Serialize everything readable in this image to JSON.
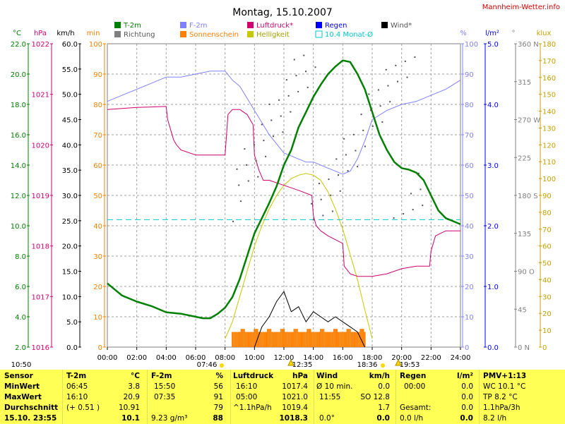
{
  "title": "Montag, 15.10.2007",
  "site": "Mannheim-Wetter.info",
  "legend": [
    {
      "label": "T-2m",
      "color": "#008000"
    },
    {
      "label": "F-2m",
      "color": "#8080ff"
    },
    {
      "label": "Luftdruck*",
      "color": "#d0006f"
    },
    {
      "label": "Regen",
      "color": "#0000ff"
    },
    {
      "label": "Wind*",
      "color": "#000000"
    },
    {
      "label": "Richtung",
      "color": "#808080"
    },
    {
      "label": "Sonnenschein",
      "color": "#ff8000"
    },
    {
      "label": "Helligkeit",
      "color": "#c8c800"
    },
    {
      "label": "10.4 Monat-Ø",
      "color": "#00c8c8"
    }
  ],
  "axis_units": {
    "temp": "°C",
    "hpa": "hPa",
    "kmh": "km/h",
    "min": "min",
    "pct": "%",
    "rain": "l/m²",
    "dir": "°",
    "klux": "klux"
  },
  "chart_data": {
    "type": "line",
    "x_range": [
      "00:00",
      "24:00"
    ],
    "x_ticks": [
      "00:00",
      "02:00",
      "04:00",
      "06:00",
      "08:00",
      "10:00",
      "12:00",
      "14:00",
      "16:00",
      "18:00",
      "20:00",
      "22:00",
      "24:00"
    ],
    "axes": {
      "temp": {
        "range": [
          2.0,
          22.0
        ],
        "ticks": [
          "22.0",
          "20.0",
          "18.0",
          "16.0",
          "14.0",
          "12.0",
          "10.0",
          "8.0",
          "6.0",
          "4.0",
          "2.0"
        ]
      },
      "hpa": {
        "range": [
          1016,
          1022
        ],
        "ticks": [
          "1022",
          "1021",
          "1020",
          "1019",
          "1018",
          "1017",
          "1016"
        ]
      },
      "kmh": {
        "range": [
          0,
          60
        ],
        "ticks": [
          "60.0",
          "55.0",
          "50.0",
          "45.0",
          "40.0",
          "35.0",
          "30.0",
          "25.0",
          "20.0",
          "15.0",
          "10.0",
          "5.0",
          "0.0"
        ]
      },
      "min": {
        "range": [
          0,
          100
        ],
        "ticks": [
          "100",
          "90",
          "80",
          "70",
          "60",
          "50",
          "40",
          "30",
          "20",
          "10",
          "0"
        ]
      },
      "pct": {
        "range": [
          0,
          100
        ],
        "ticks": [
          "100",
          "90",
          "80",
          "70",
          "60",
          "50",
          "40",
          "30",
          "20",
          "10",
          "0"
        ]
      },
      "rain": {
        "range": [
          0,
          5
        ],
        "ticks": [
          "5.0",
          "4.0",
          "3.0",
          "2.0",
          "1.0",
          "0.0"
        ]
      },
      "dir": {
        "range": [
          0,
          360
        ],
        "ticks": [
          "360 N",
          "315",
          "270 W",
          "225",
          "180 S",
          "135",
          "90 O",
          "45",
          "0 N"
        ]
      },
      "klux": {
        "range": [
          0,
          180
        ],
        "ticks": [
          "180",
          "170",
          "160",
          "150",
          "140",
          "130",
          "120",
          "110",
          "100",
          "90",
          "80",
          "70",
          "60",
          "50",
          "40",
          "30",
          "20",
          "10",
          "0"
        ]
      }
    },
    "series": [
      {
        "name": "T-2m",
        "axis": "temp",
        "x": [
          0,
          0.5,
          1,
          2,
          3,
          4,
          5,
          6,
          6.5,
          7,
          7.5,
          8,
          8.5,
          9,
          9.5,
          10,
          10.5,
          11,
          11.5,
          12,
          12.5,
          13,
          13.5,
          14,
          14.5,
          15,
          15.5,
          16,
          16.5,
          17,
          17.5,
          18,
          18.5,
          19,
          19.5,
          20,
          20.5,
          21,
          21.5,
          22,
          22.5,
          23,
          23.5,
          24
        ],
        "y": [
          6.2,
          5.8,
          5.4,
          5.0,
          4.7,
          4.3,
          4.2,
          4.0,
          3.9,
          3.9,
          4.2,
          4.6,
          5.3,
          6.5,
          8.0,
          9.5,
          10.5,
          11.5,
          12.6,
          14.0,
          15.0,
          16.5,
          17.5,
          18.5,
          19.3,
          20.0,
          20.5,
          20.9,
          20.8,
          20.0,
          19.0,
          17.5,
          16.0,
          15.0,
          14.2,
          13.8,
          13.7,
          13.5,
          13.0,
          12.0,
          11.0,
          10.5,
          10.3,
          10.1
        ]
      },
      {
        "name": "F-2m",
        "axis": "pct",
        "x": [
          0,
          1,
          2,
          3,
          4,
          5,
          6,
          7,
          8,
          8.5,
          9,
          9.5,
          10,
          10.5,
          11,
          11.5,
          12,
          12.5,
          13,
          13.5,
          14,
          14.5,
          15,
          15.5,
          16,
          16.5,
          17,
          17.5,
          18,
          19,
          20,
          21,
          22,
          23,
          24
        ],
        "y": [
          81,
          83,
          85,
          87,
          89,
          89,
          90,
          91,
          91,
          88,
          86,
          82,
          78,
          74,
          70,
          67,
          64,
          63,
          62,
          61,
          61,
          60,
          59,
          58,
          57,
          58,
          62,
          68,
          75,
          78,
          80,
          81,
          83,
          85,
          88
        ]
      },
      {
        "name": "Luftdruck*",
        "axis": "hpa",
        "x": [
          0,
          1,
          2,
          3,
          4,
          4.1,
          4.3,
          4.5,
          4.7,
          5,
          6,
          7,
          8,
          8.2,
          8.5,
          9,
          9.5,
          9.9,
          10,
          10.3,
          10.6,
          11,
          12,
          13,
          13.9,
          14.0,
          14.2,
          14.5,
          15,
          16,
          16.1,
          16.5,
          17,
          18,
          19,
          20,
          21,
          21.9,
          22.0,
          22.3,
          23,
          24
        ],
        "y": [
          1020.7,
          1020.72,
          1020.74,
          1020.75,
          1020.76,
          1020.5,
          1020.3,
          1020.1,
          1020.0,
          1019.9,
          1019.8,
          1019.8,
          1019.8,
          1020.6,
          1020.7,
          1020.7,
          1020.6,
          1020.4,
          1019.8,
          1019.5,
          1019.3,
          1019.3,
          1019.2,
          1019.1,
          1019.0,
          1018.6,
          1018.4,
          1018.3,
          1018.2,
          1018.05,
          1017.6,
          1017.45,
          1017.4,
          1017.4,
          1017.45,
          1017.55,
          1017.6,
          1017.6,
          1017.9,
          1018.2,
          1018.3,
          1018.3
        ]
      },
      {
        "name": "Helligkeit",
        "axis": "klux",
        "x": [
          8,
          8.5,
          9,
          9.5,
          10,
          10.5,
          11,
          11.5,
          12,
          12.5,
          13,
          13.5,
          14,
          14.5,
          15,
          15.5,
          16,
          16.5,
          17,
          17.5,
          18
        ],
        "y": [
          5,
          15,
          30,
          45,
          60,
          72,
          82,
          90,
          96,
          100,
          102,
          103,
          102,
          99,
          92,
          82,
          70,
          55,
          40,
          22,
          5
        ]
      },
      {
        "name": "Wind*",
        "axis": "kmh",
        "x": [
          10,
          10.5,
          11,
          11.5,
          12,
          12.5,
          13,
          13.5,
          14,
          14.5,
          15,
          15.5,
          16,
          16.5,
          17,
          17.5
        ],
        "y": [
          0,
          4,
          6,
          9,
          11,
          7,
          8,
          5,
          7,
          6,
          5,
          6,
          5,
          4,
          3,
          0
        ]
      },
      {
        "name": "Sonnenschein",
        "axis": "min",
        "x": [
          8.5,
          17.5
        ],
        "y": [
          5,
          5
        ]
      },
      {
        "name": "10.4 Monat-Ø",
        "axis": "temp",
        "x": [
          0,
          24
        ],
        "y": [
          10.4,
          10.4
        ]
      }
    ]
  },
  "events": {
    "sunrise": "07:46",
    "noon": "12:35",
    "sunset": "18:36",
    "extra_left": "10:50",
    "extra_right": "19:53"
  },
  "table": {
    "sensor": {
      "header": "Sensor",
      "rows": [
        "MinWert",
        "MaxWert",
        "Durchschnitt",
        "15.10. 23:55"
      ]
    },
    "t2m": {
      "header": "T-2m",
      "unit": "°C",
      "rows": [
        [
          "06:45",
          "3.8"
        ],
        [
          "16:10",
          "20.9"
        ],
        [
          "(+ 0.51 )",
          "10.91"
        ],
        [
          "",
          "10.1"
        ]
      ]
    },
    "f2m": {
      "header": "F-2m",
      "unit": "%",
      "rows": [
        [
          "15:50",
          "56"
        ],
        [
          "07:35",
          "91"
        ],
        [
          "",
          "79"
        ],
        [
          "9.23 g/m³",
          "88"
        ]
      ]
    },
    "luftdruck": {
      "header": "Luftdruck",
      "unit": "hPa",
      "rows": [
        [
          "16:10",
          "1017.4"
        ],
        [
          "05:00",
          "1021.0"
        ],
        [
          "^1.1hPa/h",
          "1019.4"
        ],
        [
          "",
          "1018.3"
        ]
      ]
    },
    "wind": {
      "header": "Wind",
      "unit": "km/h",
      "rows": [
        [
          "Ø 10 min.",
          "0.0"
        ],
        [
          "11:55",
          "SO 12.8"
        ],
        [
          "",
          "1.7"
        ],
        [
          "0.0°",
          "0.0"
        ]
      ]
    },
    "regen": {
      "header": "Regen",
      "unit": "l/m²",
      "rows": [
        [
          "00:00",
          "0.0"
        ],
        [
          "",
          "0.0"
        ],
        [
          "Gesamt:",
          "0.0"
        ],
        [
          "0.0 l/h",
          "0.0"
        ]
      ]
    },
    "pmv": {
      "header": "PMV+1:13",
      "rows": [
        "WC 10.1 °C",
        "TP 8.2 °C",
        "1.1hPa/3h",
        "8.2 l/h"
      ]
    }
  }
}
